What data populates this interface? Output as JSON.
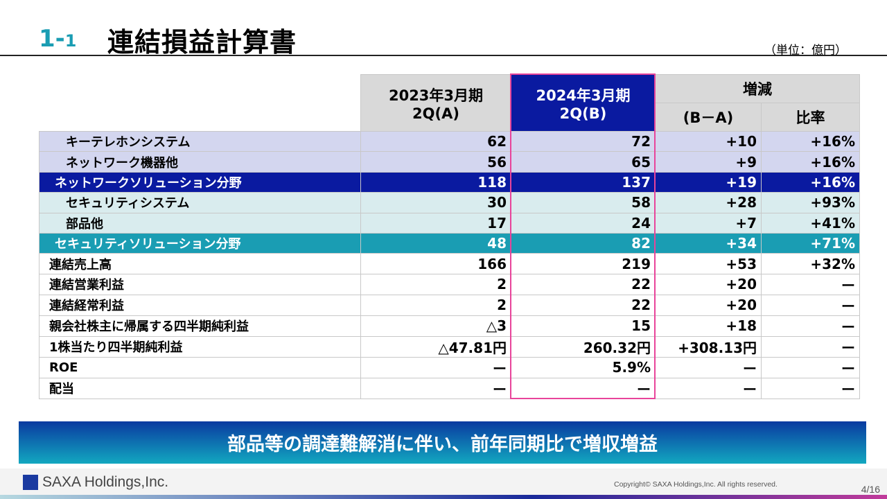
{
  "header": {
    "section_number": "1-",
    "section_sub": "1",
    "title": "連結損益計算書",
    "unit": "（単位：億円）"
  },
  "table": {
    "columns": {
      "prev": "2023年3月期\n2Q(A)",
      "prev_l1": "2023年3月期",
      "prev_l2": "2Q(A)",
      "curr_l1": "2024年3月期",
      "curr_l2": "2Q(B)",
      "change_group": "増減",
      "diff": "(B－A)",
      "ratio": "比率"
    },
    "rows": [
      {
        "label": "キーテレホンシステム",
        "a": "62",
        "b": "72",
        "diff": "+10",
        "ratio": "+16%",
        "style": "lav"
      },
      {
        "label": "ネットワーク機器他",
        "a": "56",
        "b": "65",
        "diff": "+9",
        "ratio": "+16%",
        "style": "lav"
      },
      {
        "label": "ネットワークソリューション分野",
        "a": "118",
        "b": "137",
        "diff": "+19",
        "ratio": "+16%",
        "style": "navy"
      },
      {
        "label": "セキュリティシステム",
        "a": "30",
        "b": "58",
        "diff": "+28",
        "ratio": "+93%",
        "style": "teal-l"
      },
      {
        "label": "部品他",
        "a": "17",
        "b": "24",
        "diff": "+7",
        "ratio": "+41%",
        "style": "teal-l"
      },
      {
        "label": "セキュリティソリューション分野",
        "a": "48",
        "b": "82",
        "diff": "+34",
        "ratio": "+71%",
        "style": "teal"
      },
      {
        "label": "連結売上高",
        "a": "166",
        "b": "219",
        "diff": "+53",
        "ratio": "+32%",
        "style": "plain"
      },
      {
        "label": "連結営業利益",
        "a": "2",
        "b": "22",
        "diff": "+20",
        "ratio": "ー",
        "style": "plain"
      },
      {
        "label": "連結経常利益",
        "a": "2",
        "b": "22",
        "diff": "+20",
        "ratio": "ー",
        "style": "plain"
      },
      {
        "label": "親会社株主に帰属する四半期純利益",
        "a": "△3",
        "b": "15",
        "diff": "+18",
        "ratio": "ー",
        "style": "plain"
      },
      {
        "label": "1株当たり四半期純利益",
        "a": "△47.81円",
        "b": "260.32円",
        "diff": "+308.13円",
        "ratio": "ー",
        "style": "plain"
      },
      {
        "label": "ROE",
        "a": "ー",
        "b": "5.9%",
        "diff": "ー",
        "ratio": "ー",
        "style": "plain"
      },
      {
        "label": "配当",
        "a": "ー",
        "b": "ー",
        "diff": "ー",
        "ratio": "ー",
        "style": "plain"
      }
    ]
  },
  "banner": {
    "text": "部品等の調達難解消に伴い、前年同期比で増収増益"
  },
  "footer": {
    "logo_text": "saxa",
    "company": "SAXA Holdings,Inc.",
    "copyright": "Copyright© SAXA Holdings,Inc. All rights reserved.",
    "page": "4/16"
  },
  "colors": {
    "accent_teal": "#1a9db3",
    "navy": "#0a1aa0",
    "highlight_border": "#e8449a",
    "lavender": "#d3d6ef",
    "light_teal": "#d9ecee"
  }
}
